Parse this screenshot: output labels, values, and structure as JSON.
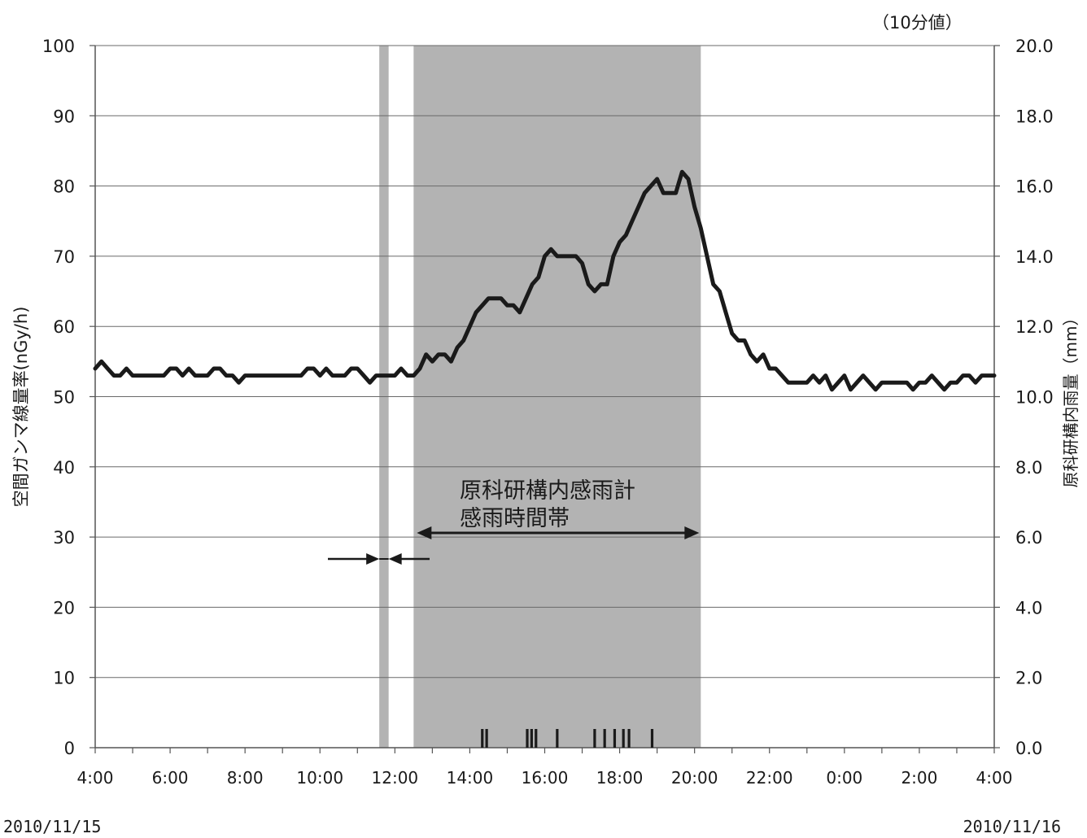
{
  "chart_data": {
    "type": "line",
    "unit_note": "（10分値）",
    "ylabel_left": "空間ガンマ線量率(nGy/h)",
    "ylabel_right": "原科研構内雨量（mm）",
    "y_left_lim": [
      0,
      100
    ],
    "y_left_ticks": [
      "0",
      "10",
      "20",
      "30",
      "40",
      "50",
      "60",
      "70",
      "80",
      "90",
      "100"
    ],
    "y_right_lim": [
      0,
      20
    ],
    "y_right_ticks": [
      "0.0",
      "2.0",
      "4.0",
      "6.0",
      "8.0",
      "10.0",
      "12.0",
      "14.0",
      "16.0",
      "18.0",
      "20.0"
    ],
    "x_lim_hours": [
      4,
      28
    ],
    "x_tick_labels": [
      "4:00",
      "6:00",
      "8:00",
      "10:00",
      "12:00",
      "14:00",
      "16:00",
      "18:00",
      "20:00",
      "22:00",
      "0:00",
      "2:00",
      "4:00"
    ],
    "date_start": "2010/11/15",
    "date_end": "2010/11/16",
    "grid": true,
    "shaded_periods": [
      {
        "start": "11:35",
        "end": "11:50"
      },
      {
        "start": "12:30",
        "end": "20:10"
      }
    ],
    "annotation_lines": [
      "原科研構内感雨計",
      "感雨時間帯"
    ],
    "dose_rate_series": {
      "times": [
        "4:00",
        "4:10",
        "4:20",
        "4:30",
        "4:40",
        "4:50",
        "5:00",
        "5:10",
        "5:20",
        "5:30",
        "5:40",
        "5:50",
        "6:00",
        "6:10",
        "6:20",
        "6:30",
        "6:40",
        "6:50",
        "7:00",
        "7:10",
        "7:20",
        "7:30",
        "7:40",
        "7:50",
        "8:00",
        "8:10",
        "8:20",
        "8:30",
        "8:40",
        "8:50",
        "9:00",
        "9:10",
        "9:20",
        "9:30",
        "9:40",
        "9:50",
        "10:00",
        "10:10",
        "10:20",
        "10:30",
        "10:40",
        "10:50",
        "11:00",
        "11:10",
        "11:20",
        "11:30",
        "11:40",
        "11:50",
        "12:00",
        "12:10",
        "12:20",
        "12:30",
        "12:40",
        "12:50",
        "13:00",
        "13:10",
        "13:20",
        "13:30",
        "13:40",
        "13:50",
        "14:00",
        "14:10",
        "14:20",
        "14:30",
        "14:40",
        "14:50",
        "15:00",
        "15:10",
        "15:20",
        "15:30",
        "15:40",
        "15:50",
        "16:00",
        "16:10",
        "16:20",
        "16:30",
        "16:40",
        "16:50",
        "17:00",
        "17:10",
        "17:20",
        "17:30",
        "17:40",
        "17:50",
        "18:00",
        "18:10",
        "18:20",
        "18:30",
        "18:40",
        "18:50",
        "19:00",
        "19:10",
        "19:20",
        "19:30",
        "19:40",
        "19:50",
        "20:00",
        "20:10",
        "20:20",
        "20:30",
        "20:40",
        "20:50",
        "21:00",
        "21:10",
        "21:20",
        "21:30",
        "21:40",
        "21:50",
        "22:00",
        "22:10",
        "22:20",
        "22:30",
        "22:40",
        "22:50",
        "23:00",
        "23:10",
        "23:20",
        "23:30",
        "23:40",
        "23:50",
        "0:00",
        "0:10",
        "0:20",
        "0:30",
        "0:40",
        "0:50",
        "1:00",
        "1:10",
        "1:20",
        "1:30",
        "1:40",
        "1:50",
        "2:00",
        "2:10",
        "2:20",
        "2:30",
        "2:40",
        "2:50",
        "3:00",
        "3:10",
        "3:20",
        "3:30",
        "3:40",
        "3:50",
        "4:00"
      ],
      "values": [
        54,
        55,
        54,
        53,
        53,
        54,
        53,
        53,
        53,
        53,
        53,
        53,
        54,
        54,
        53,
        54,
        53,
        53,
        53,
        54,
        54,
        53,
        53,
        52,
        53,
        53,
        53,
        53,
        53,
        53,
        53,
        53,
        53,
        53,
        54,
        54,
        53,
        54,
        53,
        53,
        53,
        54,
        54,
        53,
        52,
        53,
        53,
        53,
        53,
        54,
        53,
        53,
        54,
        56,
        55,
        56,
        56,
        55,
        57,
        58,
        60,
        62,
        63,
        64,
        64,
        64,
        63,
        63,
        62,
        64,
        66,
        67,
        70,
        71,
        70,
        70,
        70,
        70,
        69,
        66,
        65,
        66,
        66,
        70,
        72,
        73,
        75,
        77,
        79,
        80,
        81,
        79,
        79,
        79,
        82,
        81,
        77,
        74,
        70,
        66,
        65,
        62,
        59,
        58,
        58,
        56,
        55,
        56,
        54,
        54,
        53,
        52,
        52,
        52,
        52,
        53,
        52,
        53,
        51,
        52,
        53,
        51,
        52,
        53,
        52,
        51,
        52,
        52,
        52,
        52,
        52,
        51,
        52,
        52,
        53,
        52,
        51,
        52,
        52,
        53,
        53,
        52,
        53,
        53,
        53
      ]
    },
    "rain_tick_times": [
      "14:20",
      "14:27",
      "15:32",
      "15:39",
      "15:46",
      "16:20",
      "17:20",
      "17:36",
      "17:52",
      "18:06",
      "18:15",
      "18:52"
    ]
  }
}
